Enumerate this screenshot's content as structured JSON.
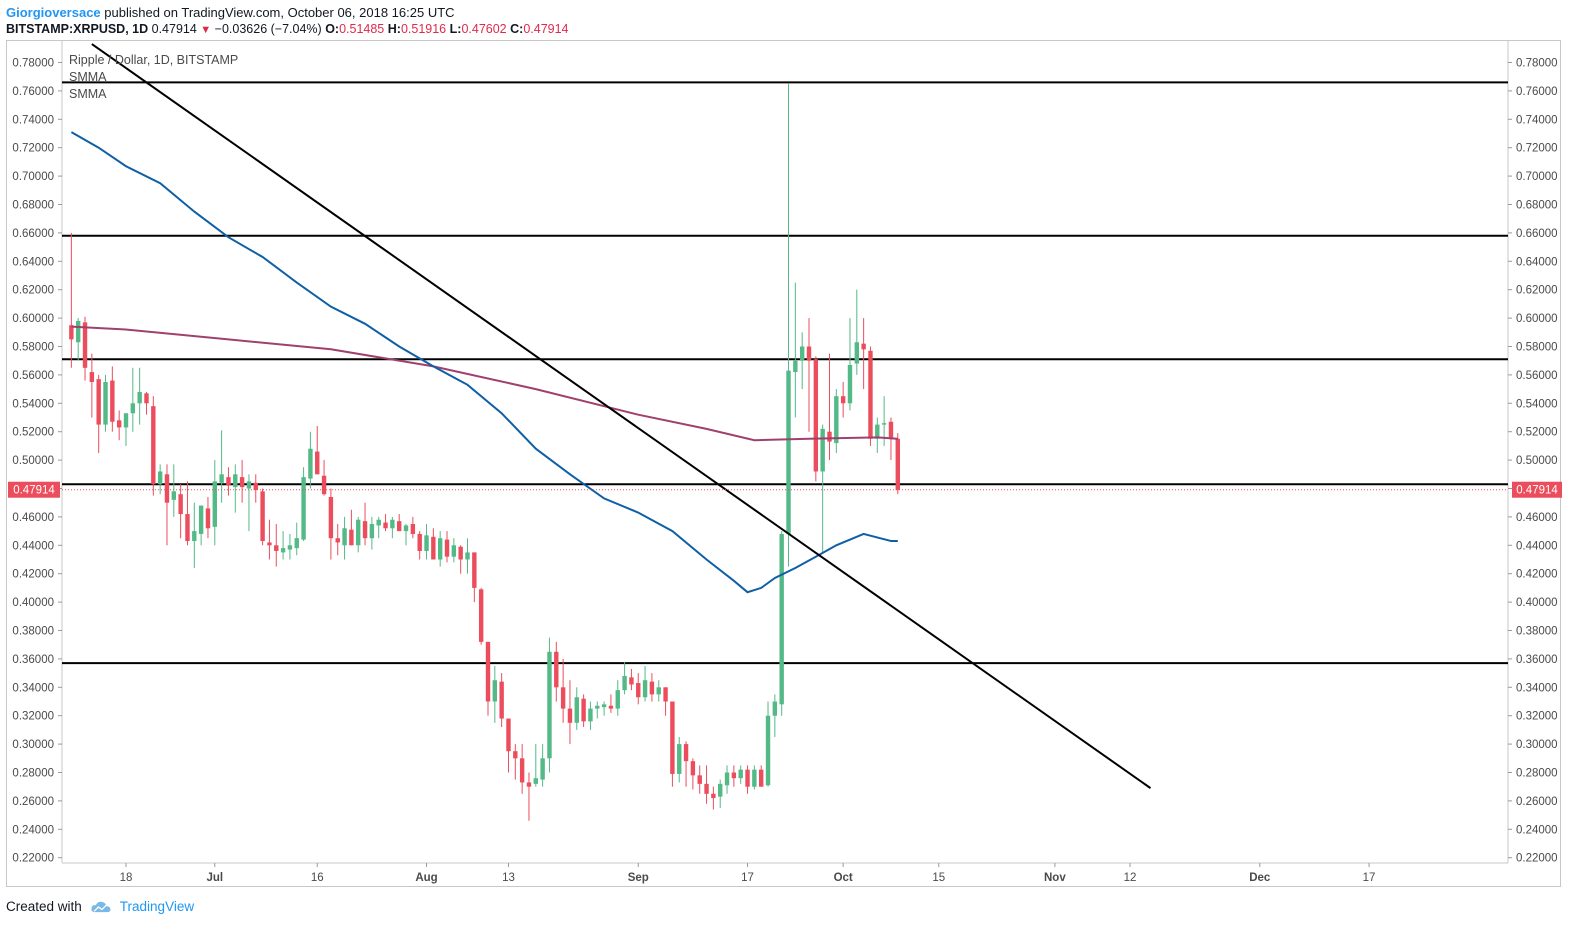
{
  "header": {
    "author": "Giorgioversace",
    "published_text": "published on TradingView.com, October 06, 2018 16:25 UTC"
  },
  "ticker": {
    "symbol": "BITSTAMP:XRPUSD, 1D",
    "last": "0.47914",
    "change": "−0.03626 (−7.04%)",
    "o_label": "O:",
    "o": "0.51485",
    "h_label": "H:",
    "h": "0.51916",
    "l_label": "L:",
    "l": "0.47602",
    "c_label": "C:",
    "c": "0.47914"
  },
  "legend": {
    "title": "Ripple / Dollar, 1D, BITSTAMP",
    "indicator1": "SMMA",
    "indicator2": "SMMA"
  },
  "footer": {
    "created_with": "Created with",
    "brand": "TradingView"
  },
  "colors": {
    "up": "#53b987",
    "down": "#eb4d5c",
    "smma_fast": "#0f5fa6",
    "smma_slow": "#a0406e",
    "price_label": "#eb4d5c",
    "lines": "#000000",
    "grid_text": "#4a4a4a"
  },
  "chart_data": {
    "type": "candlestick",
    "title": "Ripple / Dollar, 1D, BITSTAMP",
    "y_ticks": [
      "0.78000",
      "0.76000",
      "0.74000",
      "0.72000",
      "0.70000",
      "0.68000",
      "0.66000",
      "0.64000",
      "0.62000",
      "0.60000",
      "0.58000",
      "0.56000",
      "0.54000",
      "0.52000",
      "0.50000",
      "0.48000",
      "0.46000",
      "0.44000",
      "0.42000",
      "0.40000",
      "0.38000",
      "0.36000",
      "0.34000",
      "0.32000",
      "0.30000",
      "0.28000",
      "0.26000",
      "0.24000",
      "0.22000"
    ],
    "ylim": [
      0.214,
      0.79
    ],
    "x_ticks": [
      {
        "label": "18",
        "day": 0
      },
      {
        "label": "Jul",
        "day": 13
      },
      {
        "label": "16",
        "day": 28
      },
      {
        "label": "Aug",
        "day": 44
      },
      {
        "label": "13",
        "day": 56
      },
      {
        "label": "Sep",
        "day": 75
      },
      {
        "label": "17",
        "day": 91
      },
      {
        "label": "Oct",
        "day": 105
      },
      {
        "label": "15",
        "day": 119
      },
      {
        "label": "Nov",
        "day": 136
      },
      {
        "label": "12",
        "day": 147
      },
      {
        "label": "Dec",
        "day": 166
      },
      {
        "label": "17",
        "day": 182
      }
    ],
    "x_range_days": [
      -8.5,
      187
    ],
    "current_price": "0.47914",
    "horizontal_levels": [
      0.766,
      0.658,
      0.571,
      0.483,
      0.357
    ],
    "trendline": [
      {
        "day": -5,
        "price": 0.793
      },
      {
        "day": 150,
        "price": 0.269
      }
    ],
    "smma_slow": [
      {
        "day": -8,
        "price": 0.594
      },
      {
        "day": 0,
        "price": 0.592
      },
      {
        "day": 15,
        "price": 0.585
      },
      {
        "day": 30,
        "price": 0.578
      },
      {
        "day": 45,
        "price": 0.566
      },
      {
        "day": 60,
        "price": 0.55
      },
      {
        "day": 75,
        "price": 0.532
      },
      {
        "day": 85,
        "price": 0.522
      },
      {
        "day": 92,
        "price": 0.514
      },
      {
        "day": 100,
        "price": 0.515
      },
      {
        "day": 110,
        "price": 0.516
      },
      {
        "day": 113,
        "price": 0.515
      }
    ],
    "smma_fast": [
      {
        "day": -8,
        "price": 0.731
      },
      {
        "day": -4,
        "price": 0.72
      },
      {
        "day": 0,
        "price": 0.707
      },
      {
        "day": 5,
        "price": 0.695
      },
      {
        "day": 10,
        "price": 0.675
      },
      {
        "day": 15,
        "price": 0.657
      },
      {
        "day": 20,
        "price": 0.643
      },
      {
        "day": 25,
        "price": 0.625
      },
      {
        "day": 30,
        "price": 0.608
      },
      {
        "day": 35,
        "price": 0.596
      },
      {
        "day": 40,
        "price": 0.58
      },
      {
        "day": 45,
        "price": 0.566
      },
      {
        "day": 50,
        "price": 0.553
      },
      {
        "day": 55,
        "price": 0.533
      },
      {
        "day": 60,
        "price": 0.508
      },
      {
        "day": 65,
        "price": 0.49
      },
      {
        "day": 70,
        "price": 0.473
      },
      {
        "day": 75,
        "price": 0.463
      },
      {
        "day": 80,
        "price": 0.45
      },
      {
        "day": 85,
        "price": 0.43
      },
      {
        "day": 89,
        "price": 0.415
      },
      {
        "day": 91,
        "price": 0.407
      },
      {
        "day": 93,
        "price": 0.41
      },
      {
        "day": 95,
        "price": 0.417
      },
      {
        "day": 98,
        "price": 0.424
      },
      {
        "day": 101,
        "price": 0.432
      },
      {
        "day": 104,
        "price": 0.44
      },
      {
        "day": 108,
        "price": 0.448
      },
      {
        "day": 112,
        "price": 0.443
      },
      {
        "day": 113,
        "price": 0.443
      }
    ],
    "candles": [
      {
        "d": -8,
        "o": 0.595,
        "h": 0.66,
        "l": 0.565,
        "c": 0.585
      },
      {
        "d": -7,
        "o": 0.583,
        "h": 0.6,
        "l": 0.57,
        "c": 0.598
      },
      {
        "d": -6,
        "o": 0.597,
        "h": 0.601,
        "l": 0.556,
        "c": 0.565
      },
      {
        "d": -5,
        "o": 0.562,
        "h": 0.575,
        "l": 0.53,
        "c": 0.555
      },
      {
        "d": -4,
        "o": 0.557,
        "h": 0.56,
        "l": 0.505,
        "c": 0.525
      },
      {
        "d": -3,
        "o": 0.525,
        "h": 0.56,
        "l": 0.52,
        "c": 0.555
      },
      {
        "d": -2,
        "o": 0.556,
        "h": 0.566,
        "l": 0.52,
        "c": 0.527
      },
      {
        "d": -1,
        "o": 0.528,
        "h": 0.535,
        "l": 0.514,
        "c": 0.523
      },
      {
        "d": 0,
        "o": 0.523,
        "h": 0.53,
        "l": 0.51,
        "c": 0.533
      },
      {
        "d": 1,
        "o": 0.533,
        "h": 0.565,
        "l": 0.52,
        "c": 0.54
      },
      {
        "d": 2,
        "o": 0.54,
        "h": 0.565,
        "l": 0.525,
        "c": 0.548
      },
      {
        "d": 3,
        "o": 0.547,
        "h": 0.548,
        "l": 0.532,
        "c": 0.54
      },
      {
        "d": 4,
        "o": 0.538,
        "h": 0.545,
        "l": 0.475,
        "c": 0.483
      },
      {
        "d": 5,
        "o": 0.483,
        "h": 0.497,
        "l": 0.476,
        "c": 0.492
      },
      {
        "d": 6,
        "o": 0.49,
        "h": 0.497,
        "l": 0.44,
        "c": 0.47
      },
      {
        "d": 7,
        "o": 0.472,
        "h": 0.497,
        "l": 0.46,
        "c": 0.478
      },
      {
        "d": 8,
        "o": 0.476,
        "h": 0.483,
        "l": 0.445,
        "c": 0.462
      },
      {
        "d": 9,
        "o": 0.462,
        "h": 0.485,
        "l": 0.44,
        "c": 0.443
      },
      {
        "d": 10,
        "o": 0.443,
        "h": 0.47,
        "l": 0.424,
        "c": 0.45
      },
      {
        "d": 11,
        "o": 0.448,
        "h": 0.468,
        "l": 0.44,
        "c": 0.468
      },
      {
        "d": 12,
        "o": 0.466,
        "h": 0.474,
        "l": 0.445,
        "c": 0.452
      },
      {
        "d": 13,
        "o": 0.453,
        "h": 0.5,
        "l": 0.44,
        "c": 0.485
      },
      {
        "d": 14,
        "o": 0.484,
        "h": 0.521,
        "l": 0.47,
        "c": 0.49
      },
      {
        "d": 15,
        "o": 0.488,
        "h": 0.495,
        "l": 0.475,
        "c": 0.482
      },
      {
        "d": 16,
        "o": 0.481,
        "h": 0.497,
        "l": 0.463,
        "c": 0.49
      },
      {
        "d": 17,
        "o": 0.488,
        "h": 0.5,
        "l": 0.47,
        "c": 0.481
      },
      {
        "d": 18,
        "o": 0.48,
        "h": 0.49,
        "l": 0.45,
        "c": 0.485
      },
      {
        "d": 19,
        "o": 0.484,
        "h": 0.49,
        "l": 0.47,
        "c": 0.479
      },
      {
        "d": 20,
        "o": 0.478,
        "h": 0.48,
        "l": 0.44,
        "c": 0.443
      },
      {
        "d": 21,
        "o": 0.442,
        "h": 0.458,
        "l": 0.43,
        "c": 0.44
      },
      {
        "d": 22,
        "o": 0.44,
        "h": 0.455,
        "l": 0.425,
        "c": 0.436
      },
      {
        "d": 23,
        "o": 0.435,
        "h": 0.45,
        "l": 0.43,
        "c": 0.438
      },
      {
        "d": 24,
        "o": 0.437,
        "h": 0.448,
        "l": 0.43,
        "c": 0.44
      },
      {
        "d": 25,
        "o": 0.438,
        "h": 0.456,
        "l": 0.433,
        "c": 0.445
      },
      {
        "d": 26,
        "o": 0.444,
        "h": 0.495,
        "l": 0.443,
        "c": 0.488
      },
      {
        "d": 27,
        "o": 0.487,
        "h": 0.52,
        "l": 0.48,
        "c": 0.508
      },
      {
        "d": 28,
        "o": 0.506,
        "h": 0.524,
        "l": 0.49,
        "c": 0.49
      },
      {
        "d": 29,
        "o": 0.489,
        "h": 0.5,
        "l": 0.475,
        "c": 0.476
      },
      {
        "d": 30,
        "o": 0.474,
        "h": 0.48,
        "l": 0.43,
        "c": 0.445
      },
      {
        "d": 31,
        "o": 0.445,
        "h": 0.455,
        "l": 0.433,
        "c": 0.442
      },
      {
        "d": 32,
        "o": 0.44,
        "h": 0.46,
        "l": 0.43,
        "c": 0.452
      },
      {
        "d": 33,
        "o": 0.451,
        "h": 0.465,
        "l": 0.44,
        "c": 0.44
      },
      {
        "d": 34,
        "o": 0.44,
        "h": 0.46,
        "l": 0.435,
        "c": 0.458
      },
      {
        "d": 35,
        "o": 0.457,
        "h": 0.47,
        "l": 0.44,
        "c": 0.445
      },
      {
        "d": 36,
        "o": 0.445,
        "h": 0.46,
        "l": 0.437,
        "c": 0.455
      },
      {
        "d": 37,
        "o": 0.454,
        "h": 0.46,
        "l": 0.445,
        "c": 0.458
      },
      {
        "d": 38,
        "o": 0.456,
        "h": 0.462,
        "l": 0.45,
        "c": 0.452
      },
      {
        "d": 39,
        "o": 0.452,
        "h": 0.46,
        "l": 0.445,
        "c": 0.458
      },
      {
        "d": 40,
        "o": 0.457,
        "h": 0.462,
        "l": 0.45,
        "c": 0.45
      },
      {
        "d": 41,
        "o": 0.45,
        "h": 0.455,
        "l": 0.44,
        "c": 0.454
      },
      {
        "d": 42,
        "o": 0.455,
        "h": 0.46,
        "l": 0.445,
        "c": 0.448
      },
      {
        "d": 43,
        "o": 0.448,
        "h": 0.45,
        "l": 0.43,
        "c": 0.436
      },
      {
        "d": 44,
        "o": 0.436,
        "h": 0.455,
        "l": 0.43,
        "c": 0.447
      },
      {
        "d": 45,
        "o": 0.446,
        "h": 0.452,
        "l": 0.43,
        "c": 0.43
      },
      {
        "d": 46,
        "o": 0.43,
        "h": 0.45,
        "l": 0.425,
        "c": 0.445
      },
      {
        "d": 47,
        "o": 0.444,
        "h": 0.45,
        "l": 0.428,
        "c": 0.432
      },
      {
        "d": 48,
        "o": 0.432,
        "h": 0.445,
        "l": 0.428,
        "c": 0.44
      },
      {
        "d": 49,
        "o": 0.439,
        "h": 0.44,
        "l": 0.42,
        "c": 0.43
      },
      {
        "d": 50,
        "o": 0.43,
        "h": 0.445,
        "l": 0.42,
        "c": 0.435
      },
      {
        "d": 51,
        "o": 0.435,
        "h": 0.435,
        "l": 0.4,
        "c": 0.41
      },
      {
        "d": 52,
        "o": 0.409,
        "h": 0.41,
        "l": 0.37,
        "c": 0.372
      },
      {
        "d": 53,
        "o": 0.372,
        "h": 0.372,
        "l": 0.32,
        "c": 0.33
      },
      {
        "d": 54,
        "o": 0.33,
        "h": 0.355,
        "l": 0.315,
        "c": 0.345
      },
      {
        "d": 55,
        "o": 0.344,
        "h": 0.35,
        "l": 0.312,
        "c": 0.318
      },
      {
        "d": 56,
        "o": 0.318,
        "h": 0.318,
        "l": 0.28,
        "c": 0.295
      },
      {
        "d": 57,
        "o": 0.295,
        "h": 0.3,
        "l": 0.275,
        "c": 0.29
      },
      {
        "d": 58,
        "o": 0.29,
        "h": 0.3,
        "l": 0.265,
        "c": 0.273
      },
      {
        "d": 59,
        "o": 0.273,
        "h": 0.28,
        "l": 0.246,
        "c": 0.27
      },
      {
        "d": 60,
        "o": 0.272,
        "h": 0.3,
        "l": 0.27,
        "c": 0.276
      },
      {
        "d": 61,
        "o": 0.275,
        "h": 0.3,
        "l": 0.27,
        "c": 0.29
      },
      {
        "d": 62,
        "o": 0.29,
        "h": 0.375,
        "l": 0.28,
        "c": 0.365
      },
      {
        "d": 63,
        "o": 0.365,
        "h": 0.372,
        "l": 0.33,
        "c": 0.34
      },
      {
        "d": 64,
        "o": 0.34,
        "h": 0.36,
        "l": 0.315,
        "c": 0.325
      },
      {
        "d": 65,
        "o": 0.325,
        "h": 0.345,
        "l": 0.3,
        "c": 0.315
      },
      {
        "d": 66,
        "o": 0.315,
        "h": 0.34,
        "l": 0.31,
        "c": 0.333
      },
      {
        "d": 67,
        "o": 0.332,
        "h": 0.335,
        "l": 0.312,
        "c": 0.316
      },
      {
        "d": 68,
        "o": 0.316,
        "h": 0.33,
        "l": 0.31,
        "c": 0.325
      },
      {
        "d": 69,
        "o": 0.325,
        "h": 0.33,
        "l": 0.318,
        "c": 0.327
      },
      {
        "d": 70,
        "o": 0.326,
        "h": 0.33,
        "l": 0.32,
        "c": 0.328
      },
      {
        "d": 71,
        "o": 0.327,
        "h": 0.335,
        "l": 0.322,
        "c": 0.325
      },
      {
        "d": 72,
        "o": 0.325,
        "h": 0.345,
        "l": 0.32,
        "c": 0.338
      },
      {
        "d": 73,
        "o": 0.338,
        "h": 0.358,
        "l": 0.335,
        "c": 0.348
      },
      {
        "d": 74,
        "o": 0.347,
        "h": 0.353,
        "l": 0.338,
        "c": 0.342
      },
      {
        "d": 75,
        "o": 0.343,
        "h": 0.35,
        "l": 0.328,
        "c": 0.333
      },
      {
        "d": 76,
        "o": 0.333,
        "h": 0.355,
        "l": 0.33,
        "c": 0.345
      },
      {
        "d": 77,
        "o": 0.344,
        "h": 0.35,
        "l": 0.33,
        "c": 0.335
      },
      {
        "d": 78,
        "o": 0.335,
        "h": 0.345,
        "l": 0.33,
        "c": 0.34
      },
      {
        "d": 79,
        "o": 0.34,
        "h": 0.34,
        "l": 0.32,
        "c": 0.33
      },
      {
        "d": 80,
        "o": 0.33,
        "h": 0.33,
        "l": 0.27,
        "c": 0.279
      },
      {
        "d": 81,
        "o": 0.279,
        "h": 0.305,
        "l": 0.273,
        "c": 0.3
      },
      {
        "d": 82,
        "o": 0.3,
        "h": 0.302,
        "l": 0.27,
        "c": 0.288
      },
      {
        "d": 83,
        "o": 0.288,
        "h": 0.29,
        "l": 0.268,
        "c": 0.278
      },
      {
        "d": 84,
        "o": 0.278,
        "h": 0.285,
        "l": 0.265,
        "c": 0.272
      },
      {
        "d": 85,
        "o": 0.272,
        "h": 0.285,
        "l": 0.258,
        "c": 0.265
      },
      {
        "d": 86,
        "o": 0.265,
        "h": 0.27,
        "l": 0.254,
        "c": 0.262
      },
      {
        "d": 87,
        "o": 0.263,
        "h": 0.275,
        "l": 0.255,
        "c": 0.272
      },
      {
        "d": 88,
        "o": 0.271,
        "h": 0.285,
        "l": 0.265,
        "c": 0.28
      },
      {
        "d": 89,
        "o": 0.28,
        "h": 0.285,
        "l": 0.27,
        "c": 0.276
      },
      {
        "d": 90,
        "o": 0.276,
        "h": 0.285,
        "l": 0.272,
        "c": 0.282
      },
      {
        "d": 91,
        "o": 0.282,
        "h": 0.285,
        "l": 0.265,
        "c": 0.27
      },
      {
        "d": 92,
        "o": 0.27,
        "h": 0.285,
        "l": 0.268,
        "c": 0.282
      },
      {
        "d": 93,
        "o": 0.282,
        "h": 0.285,
        "l": 0.27,
        "c": 0.27
      },
      {
        "d": 94,
        "o": 0.271,
        "h": 0.33,
        "l": 0.27,
        "c": 0.32
      },
      {
        "d": 95,
        "o": 0.32,
        "h": 0.335,
        "l": 0.305,
        "c": 0.33
      },
      {
        "d": 96,
        "o": 0.328,
        "h": 0.45,
        "l": 0.32,
        "c": 0.448
      },
      {
        "d": 97,
        "o": 0.448,
        "h": 0.765,
        "l": 0.425,
        "c": 0.563
      },
      {
        "d": 98,
        "o": 0.562,
        "h": 0.625,
        "l": 0.53,
        "c": 0.57
      },
      {
        "d": 99,
        "o": 0.57,
        "h": 0.59,
        "l": 0.55,
        "c": 0.58
      },
      {
        "d": 100,
        "o": 0.58,
        "h": 0.6,
        "l": 0.52,
        "c": 0.57
      },
      {
        "d": 101,
        "o": 0.571,
        "h": 0.573,
        "l": 0.485,
        "c": 0.492
      },
      {
        "d": 102,
        "o": 0.492,
        "h": 0.525,
        "l": 0.435,
        "c": 0.522
      },
      {
        "d": 103,
        "o": 0.52,
        "h": 0.575,
        "l": 0.5,
        "c": 0.513
      },
      {
        "d": 104,
        "o": 0.512,
        "h": 0.55,
        "l": 0.505,
        "c": 0.545
      },
      {
        "d": 105,
        "o": 0.545,
        "h": 0.555,
        "l": 0.53,
        "c": 0.54
      },
      {
        "d": 106,
        "o": 0.54,
        "h": 0.6,
        "l": 0.535,
        "c": 0.567
      },
      {
        "d": 107,
        "o": 0.568,
        "h": 0.62,
        "l": 0.56,
        "c": 0.583
      },
      {
        "d": 108,
        "o": 0.582,
        "h": 0.6,
        "l": 0.55,
        "c": 0.578
      },
      {
        "d": 109,
        "o": 0.577,
        "h": 0.58,
        "l": 0.51,
        "c": 0.515
      },
      {
        "d": 110,
        "o": 0.515,
        "h": 0.53,
        "l": 0.505,
        "c": 0.525
      },
      {
        "d": 111,
        "o": 0.525,
        "h": 0.545,
        "l": 0.51,
        "c": 0.526
      },
      {
        "d": 112,
        "o": 0.527,
        "h": 0.53,
        "l": 0.5,
        "c": 0.515
      },
      {
        "d": 113,
        "o": 0.515,
        "h": 0.519,
        "l": 0.476,
        "c": 0.479
      }
    ]
  }
}
